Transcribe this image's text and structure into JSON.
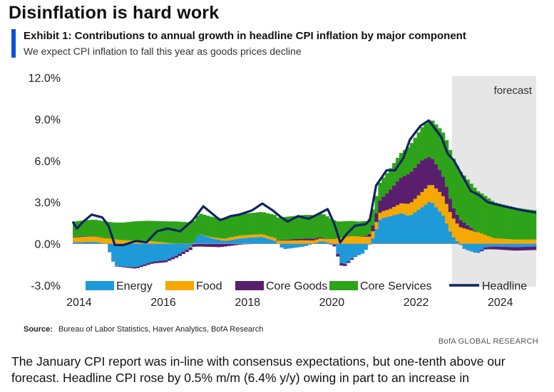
{
  "page": {
    "headline": "Disinflation is hard work",
    "exhibit_title": "Exhibit 1: Contributions to annual growth in headline CPI inflation by major component",
    "subtitle": "We expect CPI inflation to fall this year as goods prices decline",
    "source_label": "Source:",
    "source_text": "Bureau of Labor Statistics, Haver Analytics, BofA Research",
    "brand": "BofA GLOBAL RESEARCH",
    "body_line1": "The January CPI report was in-line with consensus expectations, but one-tenth above our",
    "body_line2": "forecast. Headline CPI rose by 0.5% m/m (6.4% y/y) owing in part to an increase in"
  },
  "chart_data": {
    "type": "bar",
    "stacked": true,
    "title": "Exhibit 1: Contributions to annual growth in headline CPI inflation by major component",
    "xlabel": "",
    "ylabel": "",
    "x_range": [
      2014.0,
      2025.0
    ],
    "ylim": [
      -3.0,
      12.0
    ],
    "y_ticks": [
      -3.0,
      0.0,
      3.0,
      6.0,
      9.0,
      12.0
    ],
    "y_tick_labels": [
      "-3.0%",
      "0.0%",
      "3.0%",
      "6.0%",
      "9.0%",
      "12.0%"
    ],
    "x_ticks": [
      2014,
      2016,
      2018,
      2020,
      2022,
      2024
    ],
    "x_tick_labels": [
      "2014",
      "2016",
      "2018",
      "2020",
      "2022",
      "2024"
    ],
    "forecast": {
      "start": 2023.0,
      "end": 2025.0,
      "label": "forecast",
      "color": "#e6e6e6"
    },
    "legend_position": "bottom",
    "legend": [
      "Energy",
      "Food",
      "Core Goods",
      "Core Services",
      "Headline"
    ],
    "colors": {
      "Energy": "#1f9ad9",
      "Food": "#f5a800",
      "Core Goods": "#5a1e6e",
      "Core Services": "#2ea31a",
      "Headline": "#0c2461"
    },
    "knots": {
      "Energy": [
        [
          2014.0,
          0.1
        ],
        [
          2014.5,
          0.15
        ],
        [
          2014.8,
          0.0
        ],
        [
          2015.0,
          -1.6
        ],
        [
          2015.5,
          -1.7
        ],
        [
          2015.9,
          -1.3
        ],
        [
          2016.2,
          -1.2
        ],
        [
          2016.5,
          -0.8
        ],
        [
          2016.8,
          -0.2
        ],
        [
          2017.0,
          0.7
        ],
        [
          2017.3,
          0.4
        ],
        [
          2017.6,
          0.2
        ],
        [
          2018.0,
          0.4
        ],
        [
          2018.5,
          0.5
        ],
        [
          2018.8,
          0.2
        ],
        [
          2019.0,
          -0.4
        ],
        [
          2019.5,
          -0.2
        ],
        [
          2019.9,
          0.2
        ],
        [
          2020.2,
          0.0
        ],
        [
          2020.4,
          -1.6
        ],
        [
          2020.7,
          -0.9
        ],
        [
          2020.9,
          -0.7
        ],
        [
          2021.1,
          0.2
        ],
        [
          2021.3,
          1.8
        ],
        [
          2021.8,
          2.2
        ],
        [
          2022.0,
          2.0
        ],
        [
          2022.5,
          3.1
        ],
        [
          2022.8,
          2.0
        ],
        [
          2023.0,
          0.6
        ],
        [
          2023.3,
          -0.4
        ],
        [
          2023.6,
          -0.7
        ],
        [
          2023.8,
          -0.25
        ],
        [
          2024.0,
          -0.2
        ],
        [
          2024.5,
          -0.25
        ],
        [
          2025.0,
          -0.2
        ]
      ],
      "Food": [
        [
          2014.0,
          0.35
        ],
        [
          2014.8,
          0.4
        ],
        [
          2015.2,
          0.25
        ],
        [
          2015.8,
          0.2
        ],
        [
          2016.3,
          0.05
        ],
        [
          2016.8,
          -0.05
        ],
        [
          2017.2,
          0.05
        ],
        [
          2017.8,
          0.2
        ],
        [
          2018.5,
          0.2
        ],
        [
          2019.5,
          0.25
        ],
        [
          2020.0,
          0.2
        ],
        [
          2020.3,
          0.4
        ],
        [
          2020.6,
          0.55
        ],
        [
          2021.0,
          0.5
        ],
        [
          2021.5,
          0.5
        ],
        [
          2021.9,
          0.8
        ],
        [
          2022.3,
          1.1
        ],
        [
          2022.7,
          1.4
        ],
        [
          2023.0,
          1.4
        ],
        [
          2023.3,
          1.1
        ],
        [
          2023.7,
          0.75
        ],
        [
          2024.0,
          0.4
        ],
        [
          2024.5,
          0.3
        ],
        [
          2025.0,
          0.3
        ]
      ],
      "Core Goods": [
        [
          2014.0,
          0.05
        ],
        [
          2014.8,
          0.0
        ],
        [
          2015.5,
          -0.1
        ],
        [
          2016.3,
          -0.15
        ],
        [
          2017.0,
          -0.2
        ],
        [
          2017.5,
          -0.25
        ],
        [
          2018.0,
          -0.05
        ],
        [
          2018.5,
          0.0
        ],
        [
          2019.0,
          0.05
        ],
        [
          2019.6,
          0.15
        ],
        [
          2020.0,
          0.05
        ],
        [
          2020.3,
          -0.2
        ],
        [
          2020.6,
          -0.1
        ],
        [
          2021.0,
          0.1
        ],
        [
          2021.3,
          0.9
        ],
        [
          2021.7,
          1.7
        ],
        [
          2022.0,
          2.2
        ],
        [
          2022.3,
          2.3
        ],
        [
          2022.6,
          1.8
        ],
        [
          2022.9,
          1.2
        ],
        [
          2023.0,
          0.8
        ],
        [
          2023.3,
          0.4
        ],
        [
          2023.6,
          0.0
        ],
        [
          2023.8,
          -0.15
        ],
        [
          2024.0,
          -0.2
        ],
        [
          2024.5,
          -0.25
        ],
        [
          2025.0,
          -0.25
        ]
      ],
      "Core Services": [
        [
          2014.0,
          1.1
        ],
        [
          2014.5,
          1.2
        ],
        [
          2015.0,
          1.2
        ],
        [
          2015.5,
          1.4
        ],
        [
          2016.0,
          1.5
        ],
        [
          2016.5,
          1.6
        ],
        [
          2017.0,
          1.5
        ],
        [
          2017.5,
          1.45
        ],
        [
          2018.0,
          1.55
        ],
        [
          2018.5,
          1.6
        ],
        [
          2019.0,
          1.65
        ],
        [
          2019.5,
          1.7
        ],
        [
          2020.0,
          1.7
        ],
        [
          2020.3,
          1.2
        ],
        [
          2020.6,
          1.1
        ],
        [
          2021.0,
          1.05
        ],
        [
          2021.3,
          1.3
        ],
        [
          2021.7,
          1.7
        ],
        [
          2022.0,
          2.0
        ],
        [
          2022.3,
          2.4
        ],
        [
          2022.7,
          3.0
        ],
        [
          2023.0,
          3.6
        ],
        [
          2023.3,
          3.4
        ],
        [
          2023.6,
          3.0
        ],
        [
          2024.0,
          2.6
        ],
        [
          2024.5,
          2.3
        ],
        [
          2025.0,
          2.1
        ]
      ],
      "Headline": [
        [
          2014.0,
          1.6
        ],
        [
          2014.1,
          1.1
        ],
        [
          2014.25,
          1.6
        ],
        [
          2014.45,
          2.1
        ],
        [
          2014.7,
          1.9
        ],
        [
          2014.85,
          1.3
        ],
        [
          2015.0,
          -0.1
        ],
        [
          2015.2,
          -0.1
        ],
        [
          2015.5,
          0.2
        ],
        [
          2015.75,
          0.1
        ],
        [
          2016.0,
          0.9
        ],
        [
          2016.25,
          1.1
        ],
        [
          2016.55,
          0.9
        ],
        [
          2016.85,
          1.7
        ],
        [
          2017.1,
          2.7
        ],
        [
          2017.3,
          2.2
        ],
        [
          2017.5,
          1.7
        ],
        [
          2017.75,
          2.0
        ],
        [
          2017.95,
          2.1
        ],
        [
          2018.25,
          2.4
        ],
        [
          2018.5,
          2.9
        ],
        [
          2018.75,
          2.4
        ],
        [
          2018.95,
          1.9
        ],
        [
          2019.1,
          1.6
        ],
        [
          2019.35,
          2.0
        ],
        [
          2019.6,
          1.8
        ],
        [
          2019.8,
          2.1
        ],
        [
          2020.05,
          2.5
        ],
        [
          2020.2,
          1.5
        ],
        [
          2020.35,
          0.1
        ],
        [
          2020.5,
          0.7
        ],
        [
          2020.7,
          1.3
        ],
        [
          2020.95,
          1.4
        ],
        [
          2021.05,
          1.7
        ],
        [
          2021.2,
          4.2
        ],
        [
          2021.45,
          5.3
        ],
        [
          2021.65,
          5.3
        ],
        [
          2021.85,
          6.2
        ],
        [
          2022.0,
          7.5
        ],
        [
          2022.25,
          8.5
        ],
        [
          2022.45,
          8.9
        ],
        [
          2022.6,
          8.3
        ],
        [
          2022.75,
          7.7
        ],
        [
          2022.9,
          6.5
        ],
        [
          2023.05,
          6.0
        ],
        [
          2023.25,
          4.9
        ],
        [
          2023.45,
          3.8
        ],
        [
          2023.65,
          3.5
        ],
        [
          2023.85,
          3.0
        ],
        [
          2024.1,
          2.8
        ],
        [
          2024.4,
          2.6
        ],
        [
          2024.7,
          2.4
        ],
        [
          2025.0,
          2.25
        ]
      ]
    }
  }
}
